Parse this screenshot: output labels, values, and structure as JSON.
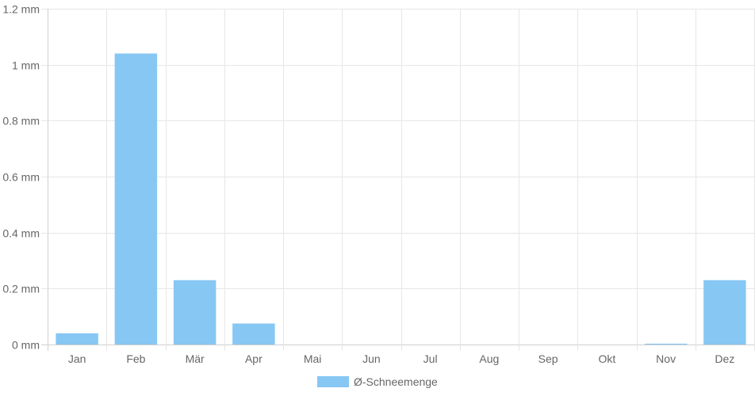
{
  "chart_data": {
    "type": "bar",
    "categories": [
      "Jan",
      "Feb",
      "Mär",
      "Apr",
      "Mai",
      "Jun",
      "Jul",
      "Aug",
      "Sep",
      "Okt",
      "Nov",
      "Dez"
    ],
    "series": [
      {
        "name": "Ø-Schneemenge",
        "values": [
          0.04,
          1.04,
          0.23,
          0.075,
          0,
          0,
          0,
          0,
          0,
          0,
          0.003,
          0.23
        ],
        "color": "#87c7f3"
      }
    ],
    "y_ticks": [
      {
        "value": 0,
        "label": "0 mm"
      },
      {
        "value": 0.2,
        "label": "0.2 mm"
      },
      {
        "value": 0.4,
        "label": "0.4 mm"
      },
      {
        "value": 0.6,
        "label": "0.6 mm"
      },
      {
        "value": 0.8,
        "label": "0.8 mm"
      },
      {
        "value": 1,
        "label": "1 mm"
      },
      {
        "value": 1.2,
        "label": "1.2 mm"
      }
    ],
    "ylim": [
      0,
      1.2
    ],
    "grid": true,
    "legend_position": "bottom"
  }
}
